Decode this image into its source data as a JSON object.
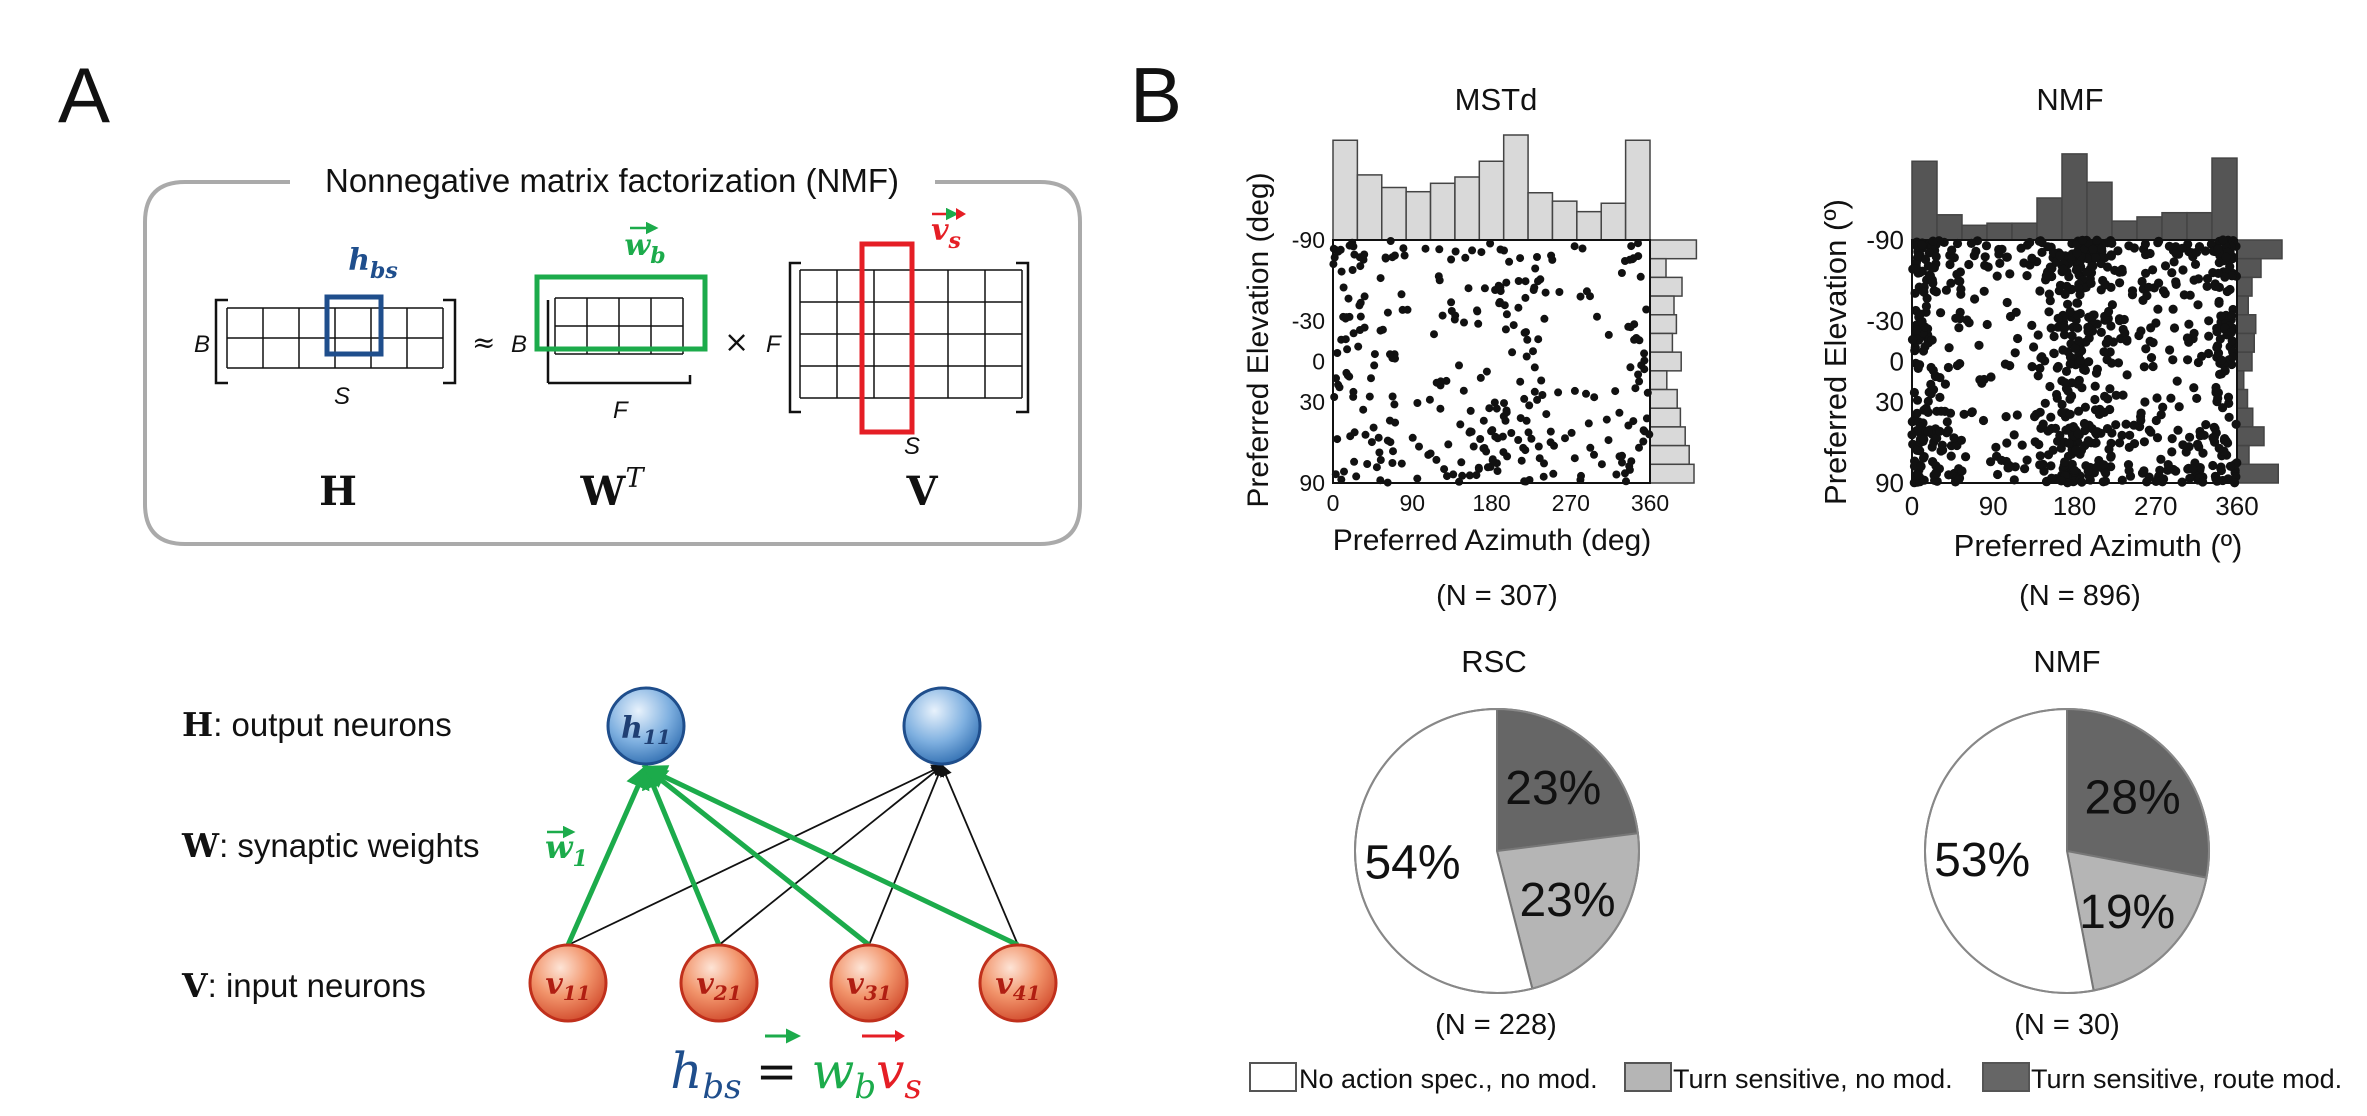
{
  "panel_a": {
    "label": "A",
    "box_title": "Nonnegative matrix factorization (NMF)",
    "sym_H": "H",
    "sym_WT_base": "W",
    "sym_WT_sup": "T",
    "sym_V": "V",
    "dim_B": "B",
    "dim_S": "S",
    "dim_F": "F",
    "approx": "≈",
    "times": "×",
    "hbs_base": "h",
    "hbs_sub": "bs",
    "wb_base": "w",
    "wb_sub": "b",
    "vs_base": "v",
    "vs_sub": "s",
    "network": {
      "row_h_sym": "H",
      "row_h_text": ": output neurons",
      "row_w_sym": "W",
      "row_w_text": ": synaptic weights",
      "row_v_sym": "V",
      "row_v_text": ": input neurons",
      "w1_base": "w",
      "w1_sub": "1",
      "h11_base": "h",
      "h11_sub": "11",
      "inputs": [
        {
          "base": "v",
          "sub": "11"
        },
        {
          "base": "v",
          "sub": "21"
        },
        {
          "base": "v",
          "sub": "31"
        },
        {
          "base": "v",
          "sub": "41"
        }
      ]
    },
    "equation": {
      "h": "h",
      "h_sub": "bs",
      "eq": "=",
      "w": "w",
      "w_sub": "b",
      "v": "v",
      "v_sub": "s"
    }
  },
  "panel_b": {
    "label": "B",
    "scatter_left": {
      "title": "MSTd",
      "xlabel": "Preferred Azimuth (deg)",
      "ylabel": "Preferred Elevation (deg)",
      "xticks": [
        "0",
        "90",
        "180",
        "270",
        "360"
      ],
      "yticks": [
        "-90",
        "-30",
        "0",
        "30",
        "90"
      ],
      "n_label": "(N = 307)"
    },
    "scatter_right": {
      "title": "NMF",
      "xlabel": "Preferred Azimuth (º)",
      "ylabel": "Preferred Elevation (º)",
      "xticks": [
        "0",
        "90",
        "180",
        "270",
        "360"
      ],
      "yticks": [
        "-90",
        "-30",
        "0",
        "30",
        "90"
      ],
      "n_label": "(N = 896)"
    },
    "pie_left": {
      "title": "RSC",
      "n_label": "(N = 228)"
    },
    "pie_right": {
      "title": "NMF",
      "n_label": "(N = 30)"
    },
    "legend": [
      {
        "label": "No action spec., no mod.",
        "color": "#ffffff"
      },
      {
        "label": "Turn sensitive, no mod.",
        "color": "#b5b5b5"
      },
      {
        "label": "Turn sensitive, route mod.",
        "color": "#666666"
      }
    ]
  },
  "chart_data": [
    {
      "type": "scatter",
      "title": "MSTd",
      "xlabel": "Preferred Azimuth (deg)",
      "ylabel": "Preferred Elevation (deg)",
      "xlim": [
        0,
        360
      ],
      "ylim": [
        -90,
        90
      ],
      "n": 307,
      "x_hist": [
        0.95,
        0.62,
        0.5,
        0.46,
        0.54,
        0.6,
        0.75,
        1.0,
        0.45,
        0.37,
        0.27,
        0.35,
        0.95
      ],
      "y_hist": [
        0.58,
        0.2,
        0.4,
        0.3,
        0.33,
        0.28,
        0.39,
        0.21,
        0.34,
        0.38,
        0.44,
        0.49,
        0.55
      ]
    },
    {
      "type": "scatter",
      "title": "NMF",
      "xlabel": "Preferred Azimuth (º)",
      "ylabel": "Preferred Elevation (º)",
      "xlim": [
        0,
        360
      ],
      "ylim": [
        -90,
        90
      ],
      "n": 896,
      "x_hist": [
        0.75,
        0.24,
        0.14,
        0.16,
        0.16,
        0.4,
        0.82,
        0.55,
        0.18,
        0.22,
        0.26,
        0.26,
        0.78
      ],
      "y_hist": [
        0.6,
        0.32,
        0.2,
        0.15,
        0.25,
        0.23,
        0.2,
        0.09,
        0.14,
        0.21,
        0.36,
        0.16,
        0.55
      ]
    },
    {
      "type": "pie",
      "title": "RSC",
      "n": 228,
      "slices": [
        {
          "label": "Turn sensitive, route mod.",
          "value": 23,
          "text": "23%"
        },
        {
          "label": "Turn sensitive, no mod.",
          "value": 23,
          "text": "23%"
        },
        {
          "label": "No action spec., no mod.",
          "value": 54,
          "text": "54%"
        }
      ]
    },
    {
      "type": "pie",
      "title": "NMF",
      "n": 30,
      "slices": [
        {
          "label": "Turn sensitive, route mod.",
          "value": 28,
          "text": "28%"
        },
        {
          "label": "Turn sensitive, no mod.",
          "value": 19,
          "text": "19%"
        },
        {
          "label": "No action spec., no mod.",
          "value": 53,
          "text": "53%"
        }
      ]
    }
  ]
}
